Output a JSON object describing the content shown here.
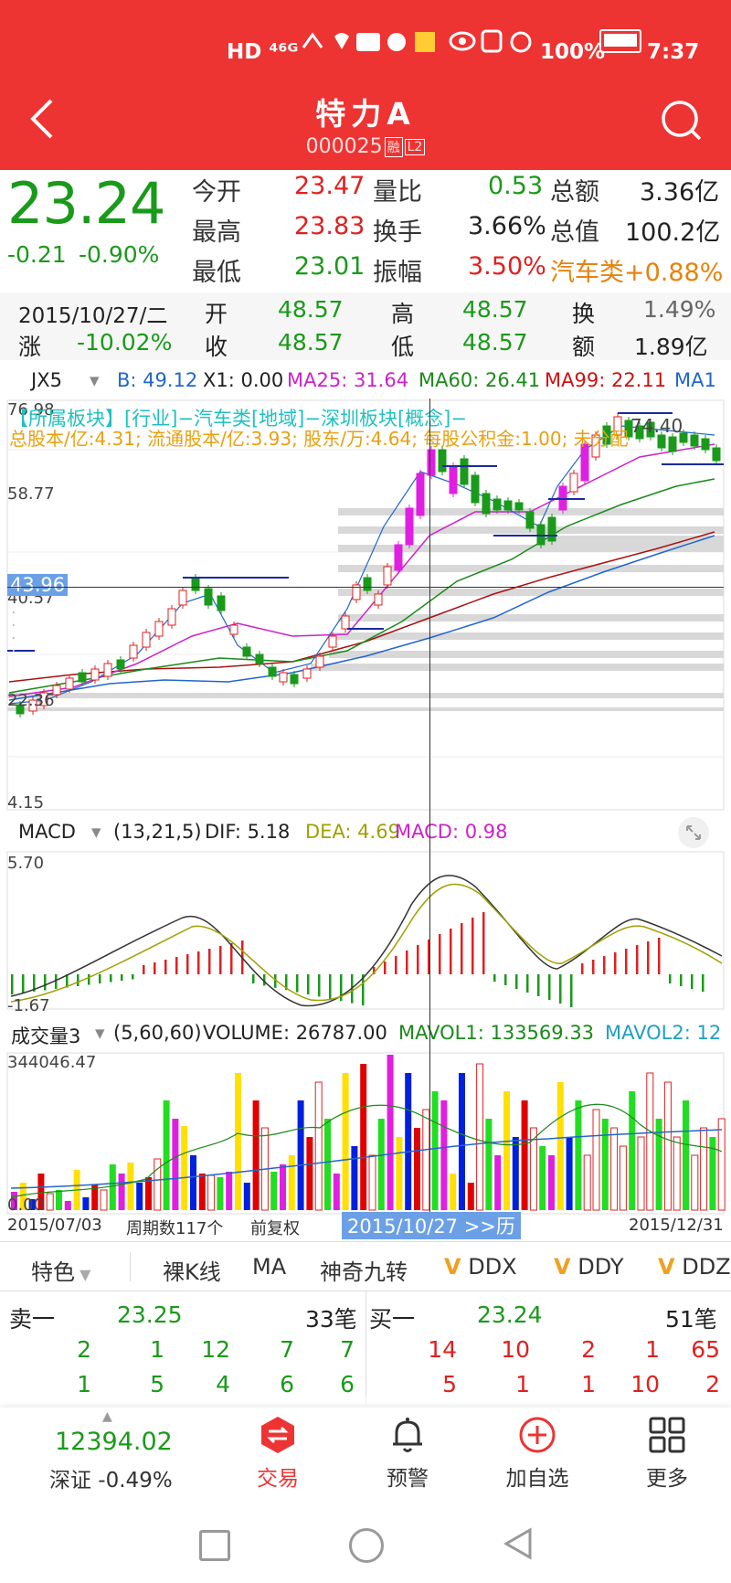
{
  "status_bar": {
    "left_icons": "HD ⁴⁶ᴳ",
    "battery_pct": "100%",
    "time": "7:37"
  },
  "header": {
    "title": "特力A",
    "code": "000025",
    "badge1": "融",
    "badge2": "L2"
  },
  "quote": {
    "price": "23.24",
    "change": "-0.21",
    "change_pct": "-0.90%",
    "open_label": "今开",
    "open": "23.47",
    "high_label": "最高",
    "high": "23.83",
    "low_label": "最低",
    "low": "23.01",
    "ratio_label": "量比",
    "ratio": "0.53",
    "turnover_label": "换手",
    "turnover": "3.66%",
    "amp_label": "振幅",
    "amp": "3.50%",
    "amount_label": "总额",
    "amount": "3.36亿",
    "cap_label": "总值",
    "cap": "100.2亿",
    "sector": "汽车类+0.88%"
  },
  "day_info": {
    "date": "2015/10/27/二",
    "open_label": "开",
    "open": "48.57",
    "high_label": "高",
    "high": "48.57",
    "turn_label": "换",
    "turn": "1.49%",
    "chg_label": "涨",
    "chg": "-10.02%",
    "close_label": "收",
    "close": "48.57",
    "low_label": "低",
    "low": "48.57",
    "amt_label": "额",
    "amt": "1.89亿"
  },
  "kline": {
    "indicator": "JX5",
    "b": "B: 49.12",
    "x1": "X1: 0.00",
    "ma25": "MA25: 31.64",
    "ma60": "MA60: 26.41",
    "ma99": "MA99: 22.11",
    "ma1": "MA1",
    "info1": "【所属板块】[行业]−汽车类[地域]−深圳板块[概念]−",
    "info2": "总股本/亿:4.31; 流通股本/亿:3.93; 股东/万:4.64; 每股公积金:1.00; 未分配",
    "y_top": "76.98",
    "y_2": "58.77",
    "y_cursor": "43.96",
    "y_3": "40.57",
    "y_4": "22.36",
    "y_bottom": "4.15",
    "peak_label": "74.40"
  },
  "macd": {
    "name": "MACD",
    "params": "(13,21,5)",
    "dif": "DIF: 5.18",
    "dea": "DEA: 4.69",
    "macd": "MACD: 0.98",
    "y_top": "5.70",
    "y_bottom": "-1.67"
  },
  "volume": {
    "name": "成交量3",
    "params": "(5,60,60)",
    "vol": "VOLUME: 26787.00",
    "mavol1": "MAVOL1: 133569.33",
    "mavol2": "MAVOL2: 12",
    "y_top": "344046.47",
    "y_bottom": "0.00"
  },
  "date_axis": {
    "start": "2015/07/03",
    "periods": "周期数117个",
    "adjust": "前复权",
    "cursor": "2015/10/27 >>历",
    "end": "2015/12/31"
  },
  "tabs": {
    "t1": "特色",
    "t2": "裸K线",
    "t3": "MA",
    "t4": "神奇九转",
    "t5": "DDX",
    "t6": "DDY",
    "t7": "DDZ",
    "v": "V"
  },
  "orderbook": {
    "sell_label": "卖一",
    "sell_price": "23.25",
    "sell_count": "33笔",
    "buy_label": "买一",
    "buy_price": "23.24",
    "buy_count": "51笔",
    "sell_row1": [
      "2",
      "1",
      "12",
      "7",
      "7"
    ],
    "sell_row2": [
      "1",
      "5",
      "4",
      "6",
      "6"
    ],
    "buy_row1": [
      "14",
      "10",
      "2",
      "1",
      "65"
    ],
    "buy_row2": [
      "5",
      "1",
      "1",
      "10",
      "2"
    ]
  },
  "bottom_nav": {
    "index_value": "12394.02",
    "index_name": "深证 -0.49%",
    "trade": "交易",
    "alert": "预警",
    "watch": "加自选",
    "more": "更多"
  },
  "colors": {
    "header": "#ee3333",
    "up": "#e02020",
    "down": "#1a9a1a",
    "magenta": "#e020e0",
    "sector": "#e8820c"
  }
}
